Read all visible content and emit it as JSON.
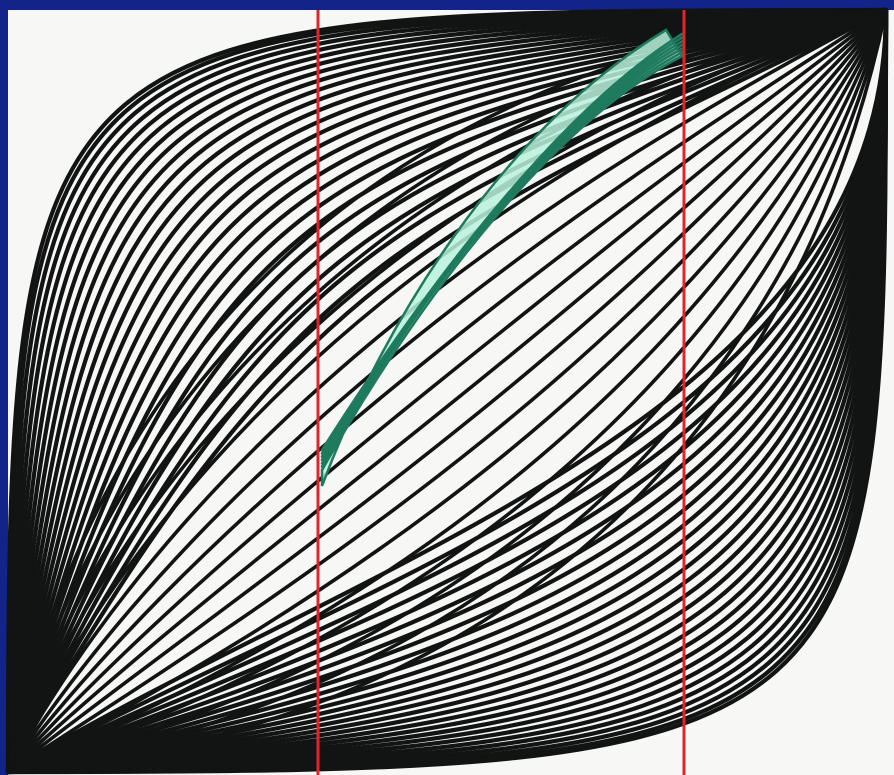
{
  "diagram": {
    "frame_color": "#12238a",
    "panel_color": "#f7f7f5",
    "curve_color": "#121414",
    "marker_color": "#e0242e",
    "highlight_fill": "#b8f2dc",
    "highlight_stroke": "#1f7a5e"
  }
}
